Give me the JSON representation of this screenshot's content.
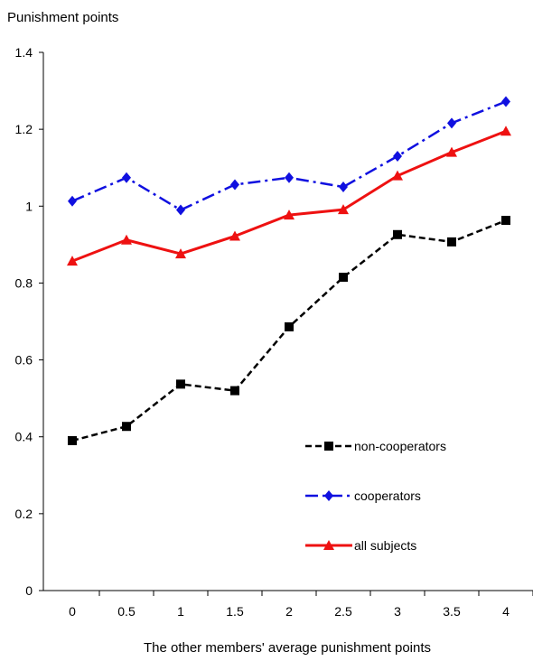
{
  "chart_data": {
    "type": "line",
    "title": "",
    "ylabel": "Punishment points",
    "xlabel": "The other members' average punishment points",
    "ylim": [
      0,
      1.4
    ],
    "y_ticks": [
      0,
      0.2,
      0.4,
      0.6,
      0.8,
      1,
      1.2,
      1.4
    ],
    "y_tick_labels": [
      "0",
      "0.2",
      "0.4",
      "0.6",
      "0.8",
      "1",
      "1.2",
      "1.4"
    ],
    "categories": [
      "0",
      "0.5",
      "1",
      "1.5",
      "2",
      "2.5",
      "3",
      "3.5",
      "4"
    ],
    "grid": false,
    "legend_position": "bottom-right",
    "series": [
      {
        "name": "non-cooperators",
        "color": "#000000",
        "style": "dashed",
        "marker": "square",
        "values": [
          0.39,
          0.427,
          0.537,
          0.52,
          0.686,
          0.815,
          0.926,
          0.907,
          0.963
        ]
      },
      {
        "name": "cooperators",
        "color": "#1010e0",
        "style": "dashdot",
        "marker": "diamond",
        "values": [
          1.013,
          1.074,
          0.99,
          1.056,
          1.074,
          1.05,
          1.13,
          1.216,
          1.272
        ]
      },
      {
        "name": "all subjects",
        "color": "#ee1111",
        "style": "solid",
        "marker": "triangle",
        "values": [
          0.857,
          0.912,
          0.876,
          0.922,
          0.977,
          0.991,
          1.079,
          1.14,
          1.195
        ]
      }
    ]
  }
}
